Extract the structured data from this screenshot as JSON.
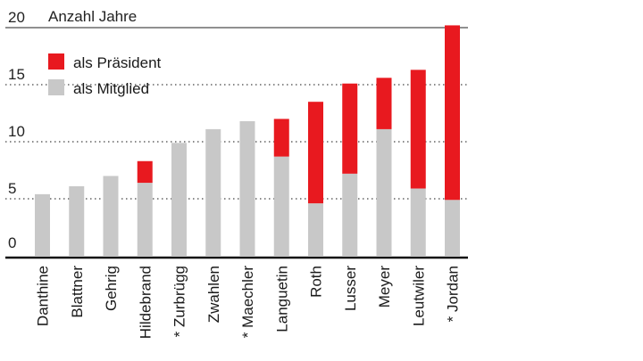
{
  "chart_data": {
    "type": "bar",
    "stacked": true,
    "title": "Anzahl Jahre",
    "xlabel": "",
    "ylabel": "",
    "ylim": [
      0,
      20
    ],
    "yticks": [
      "0",
      "5",
      "10",
      "15",
      "20"
    ],
    "grid": "dotted horizontal",
    "legend_position": "top-left",
    "categories": [
      "Danthine",
      "Blattner",
      "Gehrig",
      "Hildebrand",
      "* Zurbrügg",
      "Zwahlen",
      "* Maechler",
      "Languetin",
      "Roth",
      "Lusser",
      "Meyer",
      "Leutwiler",
      "* Jordan"
    ],
    "series": [
      {
        "name": "als Mitglied",
        "color": "#c8c8c8",
        "values": [
          5.4,
          6.1,
          7.0,
          6.4,
          9.9,
          11.1,
          11.8,
          8.7,
          4.6,
          7.2,
          11.1,
          5.9,
          4.9
        ]
      },
      {
        "name": "als Präsident",
        "color": "#e8191f",
        "values": [
          0,
          0,
          0,
          1.9,
          0,
          0,
          0,
          3.3,
          8.9,
          7.9,
          4.5,
          10.4,
          15.3
        ]
      }
    ]
  }
}
